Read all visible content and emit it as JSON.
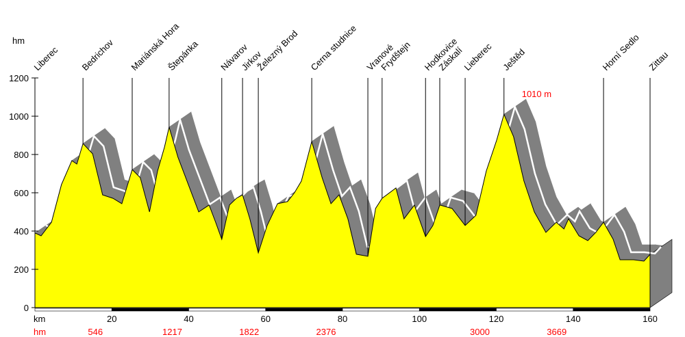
{
  "chart_data": {
    "type": "area",
    "title": "",
    "ylabel": "hm",
    "xlabel": "km",
    "ylim": [
      0,
      1200
    ],
    "xlim": [
      0,
      160
    ],
    "y_ticks": [
      0,
      200,
      400,
      600,
      800,
      1000,
      1200
    ],
    "x_ticks": [
      20,
      40,
      60,
      80,
      100,
      120,
      140,
      160
    ],
    "max_annotation": {
      "km": 122.0,
      "text": "1010 m"
    },
    "climb_row_label": "hm",
    "climb_labels": [
      {
        "km": 20,
        "text": "546"
      },
      {
        "km": 40,
        "text": "1217"
      },
      {
        "km": 60,
        "text": "1822"
      },
      {
        "km": 80,
        "text": "2376"
      },
      {
        "km": 120,
        "text": "3000"
      },
      {
        "km": 140,
        "text": "3669"
      }
    ],
    "places": [
      {
        "name": "Liberec",
        "km": 0
      },
      {
        "name": "Bedrichov",
        "km": 12.5
      },
      {
        "name": "Mariánská Hora",
        "km": 25.3
      },
      {
        "name": "Štepánka",
        "km": 34.9
      },
      {
        "name": "Návarov",
        "km": 48.6
      },
      {
        "name": "Jirkov",
        "km": 54.0
      },
      {
        "name": "Železný Brod",
        "km": 58.1
      },
      {
        "name": "Cerna studnice",
        "km": 72.0
      },
      {
        "name": "Vranové",
        "km": 86.6
      },
      {
        "name": "Frydštejn",
        "km": 90.3
      },
      {
        "name": "Hodkovice",
        "km": 101.6
      },
      {
        "name": "Záskalí",
        "km": 105.3
      },
      {
        "name": "Lieberec",
        "km": 111.9
      },
      {
        "name": "Ještěd",
        "km": 122.0
      },
      {
        "name": "Horní Sedlo",
        "km": 147.9
      },
      {
        "name": "Zittau",
        "km": 160
      }
    ],
    "profile": [
      [
        0,
        390
      ],
      [
        1.6,
        375
      ],
      [
        4.3,
        446
      ],
      [
        6.9,
        643
      ],
      [
        9.6,
        768
      ],
      [
        10.9,
        750
      ],
      [
        12.5,
        857
      ],
      [
        15.0,
        804
      ],
      [
        17.6,
        589
      ],
      [
        20.3,
        571
      ],
      [
        22.6,
        543
      ],
      [
        25.3,
        721
      ],
      [
        27.4,
        679
      ],
      [
        29.8,
        500
      ],
      [
        31.9,
        714
      ],
      [
        33.7,
        839
      ],
      [
        34.9,
        943
      ],
      [
        37.2,
        786
      ],
      [
        39.9,
        643
      ],
      [
        42.6,
        500
      ],
      [
        45.3,
        536
      ],
      [
        47.0,
        446
      ],
      [
        48.6,
        357
      ],
      [
        50.6,
        536
      ],
      [
        52.4,
        571
      ],
      [
        54.0,
        589
      ],
      [
        55.9,
        464
      ],
      [
        58.1,
        286
      ],
      [
        60.4,
        429
      ],
      [
        63.1,
        543
      ],
      [
        65.7,
        554
      ],
      [
        67.5,
        600
      ],
      [
        69.3,
        661
      ],
      [
        72.0,
        868
      ],
      [
        74.7,
        679
      ],
      [
        77.0,
        543
      ],
      [
        79.1,
        589
      ],
      [
        81.4,
        464
      ],
      [
        83.6,
        279
      ],
      [
        86.6,
        268
      ],
      [
        88.6,
        518
      ],
      [
        90.3,
        571
      ],
      [
        93.9,
        625
      ],
      [
        96.0,
        464
      ],
      [
        98.7,
        536
      ],
      [
        101.6,
        371
      ],
      [
        103.5,
        429
      ],
      [
        105.3,
        536
      ],
      [
        108.5,
        518
      ],
      [
        111.9,
        429
      ],
      [
        114.7,
        482
      ],
      [
        117.4,
        714
      ],
      [
        120.1,
        875
      ],
      [
        122.0,
        1010
      ],
      [
        124.5,
        893
      ],
      [
        127.2,
        661
      ],
      [
        129.9,
        500
      ],
      [
        132.9,
        393
      ],
      [
        135.6,
        446
      ],
      [
        137.6,
        411
      ],
      [
        138.8,
        464
      ],
      [
        141.5,
        375
      ],
      [
        143.8,
        350
      ],
      [
        145.9,
        393
      ],
      [
        147.9,
        446
      ],
      [
        150.4,
        357
      ],
      [
        152.2,
        250
      ],
      [
        155.7,
        250
      ],
      [
        158.4,
        243
      ],
      [
        160,
        278
      ]
    ],
    "colors": {
      "fill": "#ffff00",
      "shadow": "#808080",
      "accent": "#ff0000"
    }
  }
}
